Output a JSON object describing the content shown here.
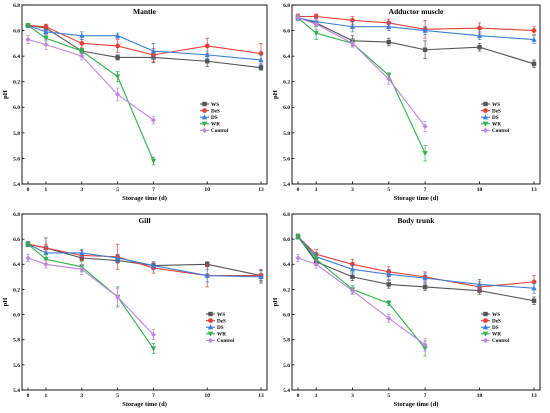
{
  "chart_data": [
    {
      "type": "line",
      "title": "Mantle",
      "xlabel": "Storage time (d)",
      "ylabel": "pH",
      "x": [
        0,
        1,
        3,
        5,
        7,
        10,
        13
      ],
      "xlim": [
        0,
        13
      ],
      "ylim": [
        5.4,
        6.8
      ],
      "yticks": [
        "5.4",
        "5.6",
        "5.8",
        "6.0",
        "6.2",
        "6.4",
        "6.6",
        "6.8"
      ],
      "legend_position": "center-right",
      "series": [
        {
          "name": "WS",
          "color": "#555555",
          "marker": "square",
          "x": [
            0,
            1,
            3,
            5,
            7,
            10,
            13
          ],
          "values": [
            6.64,
            6.62,
            6.44,
            6.39,
            6.39,
            6.36,
            6.31
          ],
          "errors": [
            0.01,
            0.02,
            0.02,
            0.02,
            0.04,
            0.04,
            0.02
          ]
        },
        {
          "name": "DeS",
          "color": "#e8413a",
          "marker": "circle",
          "x": [
            0,
            1,
            3,
            5,
            7,
            10,
            13
          ],
          "values": [
            6.64,
            6.63,
            6.5,
            6.48,
            6.41,
            6.48,
            6.42
          ],
          "errors": [
            0.01,
            0.02,
            0.03,
            0.05,
            0.05,
            0.06,
            0.08
          ]
        },
        {
          "name": "DS",
          "color": "#3c7fd6",
          "marker": "triangle-up",
          "x": [
            0,
            1,
            3,
            5,
            7,
            10,
            13
          ],
          "values": [
            6.64,
            6.59,
            6.56,
            6.56,
            6.44,
            6.41,
            6.37
          ],
          "errors": [
            0.01,
            0.02,
            0.03,
            0.02,
            0.06,
            0.03,
            0.04
          ]
        },
        {
          "name": "WR",
          "color": "#2fb04a",
          "marker": "triangle-down",
          "x": [
            0,
            1,
            3,
            5,
            7
          ],
          "values": [
            6.64,
            6.54,
            6.44,
            6.24,
            5.58
          ],
          "errors": [
            0.01,
            0.02,
            0.02,
            0.04,
            0.03
          ]
        },
        {
          "name": "Control",
          "color": "#c086e0",
          "marker": "diamond",
          "x": [
            0,
            1,
            3,
            5,
            7
          ],
          "values": [
            6.53,
            6.49,
            6.4,
            6.1,
            5.9
          ],
          "errors": [
            0.03,
            0.04,
            0.03,
            0.05,
            0.03
          ]
        }
      ]
    },
    {
      "type": "line",
      "title": "Adductor muscle",
      "xlabel": "Storage time (d)",
      "ylabel": "pH",
      "x": [
        0,
        1,
        3,
        5,
        7,
        10,
        13
      ],
      "xlim": [
        0,
        13
      ],
      "ylim": [
        5.4,
        6.8
      ],
      "yticks": [
        "5.4",
        "5.6",
        "5.8",
        "6.0",
        "6.2",
        "6.4",
        "6.6",
        "6.8"
      ],
      "legend_position": "center-right",
      "series": [
        {
          "name": "WS",
          "color": "#555555",
          "marker": "square",
          "x": [
            0,
            1,
            3,
            5,
            7,
            10,
            13
          ],
          "values": [
            6.7,
            6.66,
            6.52,
            6.51,
            6.45,
            6.47,
            6.34
          ],
          "errors": [
            0.02,
            0.03,
            0.04,
            0.03,
            0.07,
            0.03,
            0.03
          ]
        },
        {
          "name": "DeS",
          "color": "#e8413a",
          "marker": "circle",
          "x": [
            0,
            1,
            3,
            5,
            7,
            10,
            13
          ],
          "values": [
            6.71,
            6.71,
            6.68,
            6.66,
            6.61,
            6.62,
            6.6
          ],
          "errors": [
            0.02,
            0.02,
            0.03,
            0.03,
            0.07,
            0.04,
            0.03
          ]
        },
        {
          "name": "DS",
          "color": "#3c7fd6",
          "marker": "triangle-up",
          "x": [
            0,
            1,
            3,
            5,
            7,
            10,
            13
          ],
          "values": [
            6.7,
            6.67,
            6.63,
            6.63,
            6.6,
            6.56,
            6.53
          ],
          "errors": [
            0.02,
            0.03,
            0.04,
            0.03,
            0.03,
            0.03,
            0.03
          ]
        },
        {
          "name": "WR",
          "color": "#2fb04a",
          "marker": "triangle-down",
          "x": [
            0,
            1,
            3,
            5,
            7
          ],
          "values": [
            6.7,
            6.58,
            6.5,
            6.25,
            5.64
          ],
          "errors": [
            0.02,
            0.05,
            0.03,
            0.02,
            0.06
          ]
        },
        {
          "name": "Control",
          "color": "#c086e0",
          "marker": "diamond",
          "x": [
            0,
            1,
            3,
            5,
            7
          ],
          "values": [
            6.7,
            6.65,
            6.5,
            6.22,
            5.85
          ],
          "errors": [
            0.02,
            0.04,
            0.03,
            0.04,
            0.04
          ]
        }
      ]
    },
    {
      "type": "line",
      "title": "Gill",
      "xlabel": "Storage time (d)",
      "ylabel": "pH",
      "x": [
        0,
        1,
        3,
        5,
        7,
        10,
        13
      ],
      "xlim": [
        0,
        13
      ],
      "ylim": [
        5.4,
        6.8
      ],
      "yticks": [
        "5.4",
        "5.6",
        "5.8",
        "6.0",
        "6.2",
        "6.4",
        "6.6",
        "6.8"
      ],
      "legend_position": "bottom-center",
      "series": [
        {
          "name": "WS",
          "color": "#555555",
          "marker": "square",
          "x": [
            0,
            1,
            3,
            5,
            7,
            10,
            13
          ],
          "values": [
            6.56,
            6.53,
            6.45,
            6.43,
            6.39,
            6.4,
            6.31
          ],
          "errors": [
            0.02,
            0.08,
            0.02,
            0.02,
            0.03,
            0.02,
            0.04
          ]
        },
        {
          "name": "DeS",
          "color": "#e8413a",
          "marker": "circle",
          "x": [
            0,
            1,
            3,
            5,
            7,
            10,
            13
          ],
          "values": [
            6.56,
            6.53,
            6.47,
            6.46,
            6.37,
            6.31,
            6.31
          ],
          "errors": [
            0.02,
            0.03,
            0.04,
            0.1,
            0.04,
            0.09,
            0.05
          ]
        },
        {
          "name": "DS",
          "color": "#3c7fd6",
          "marker": "triangle-up",
          "x": [
            0,
            1,
            3,
            5,
            7,
            10,
            13
          ],
          "values": [
            6.56,
            6.49,
            6.49,
            6.45,
            6.39,
            6.31,
            6.3
          ],
          "errors": [
            0.02,
            0.05,
            0.03,
            0.03,
            0.03,
            0.05,
            0.05
          ]
        },
        {
          "name": "WR",
          "color": "#2fb04a",
          "marker": "triangle-down",
          "x": [
            0,
            1,
            3,
            5,
            7
          ],
          "values": [
            6.56,
            6.44,
            6.38,
            6.14,
            5.73
          ],
          "errors": [
            0.02,
            0.04,
            0.04,
            0.08,
            0.04
          ]
        },
        {
          "name": "Control",
          "color": "#c086e0",
          "marker": "diamond",
          "x": [
            0,
            1,
            3,
            5,
            7
          ],
          "values": [
            6.45,
            6.4,
            6.36,
            6.14,
            5.84
          ],
          "errors": [
            0.03,
            0.03,
            0.04,
            0.07,
            0.04
          ]
        }
      ]
    },
    {
      "type": "line",
      "title": "Body trunk",
      "xlabel": "Storage time (d)",
      "ylabel": "pH",
      "x": [
        0,
        1,
        3,
        5,
        7,
        10,
        13
      ],
      "xlim": [
        0,
        13
      ],
      "ylim": [
        5.4,
        6.8
      ],
      "yticks": [
        "5.4",
        "5.6",
        "5.8",
        "6.0",
        "6.2",
        "6.4",
        "6.6",
        "6.8"
      ],
      "legend_position": "bottom-center",
      "series": [
        {
          "name": "WS",
          "color": "#555555",
          "marker": "square",
          "x": [
            0,
            1,
            3,
            5,
            7,
            10,
            13
          ],
          "values": [
            6.62,
            6.42,
            6.3,
            6.24,
            6.22,
            6.19,
            6.11
          ],
          "errors": [
            0.02,
            0.03,
            0.03,
            0.03,
            0.03,
            0.03,
            0.03
          ]
        },
        {
          "name": "DeS",
          "color": "#e8413a",
          "marker": "circle",
          "x": [
            0,
            1,
            3,
            5,
            7,
            10,
            13
          ],
          "values": [
            6.62,
            6.48,
            6.4,
            6.34,
            6.3,
            6.22,
            6.26
          ],
          "errors": [
            0.02,
            0.04,
            0.04,
            0.04,
            0.04,
            0.04,
            0.05
          ]
        },
        {
          "name": "DS",
          "color": "#3c7fd6",
          "marker": "triangle-up",
          "x": [
            0,
            1,
            3,
            5,
            7,
            10,
            13
          ],
          "values": [
            6.62,
            6.46,
            6.36,
            6.32,
            6.29,
            6.24,
            6.21
          ],
          "errors": [
            0.02,
            0.03,
            0.03,
            0.04,
            0.04,
            0.04,
            0.04
          ]
        },
        {
          "name": "WR",
          "color": "#2fb04a",
          "marker": "triangle-down",
          "x": [
            0,
            1,
            3,
            5,
            7
          ],
          "values": [
            6.62,
            6.44,
            6.2,
            6.09,
            5.73
          ],
          "errors": [
            0.02,
            0.04,
            0.03,
            0.02,
            0.06
          ]
        },
        {
          "name": "Control",
          "color": "#c086e0",
          "marker": "diamond",
          "x": [
            0,
            1,
            3,
            5,
            7
          ],
          "values": [
            6.45,
            6.4,
            6.19,
            5.97,
            5.76
          ],
          "errors": [
            0.03,
            0.03,
            0.03,
            0.03,
            0.05
          ]
        }
      ]
    }
  ]
}
